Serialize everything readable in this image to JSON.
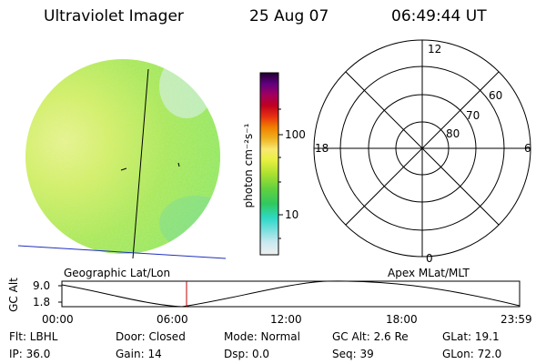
{
  "header": {
    "title": "Ultraviolet Imager",
    "date": "25 Aug 07",
    "time": "06:49:44 UT"
  },
  "colorbar": {
    "unit": "photon cm⁻²s⁻¹",
    "tick_100": "100",
    "tick_10": "10",
    "colors": [
      "#f0f0f0",
      "#c8e8f0",
      "#80e0e0",
      "#30d8c8",
      "#30c860",
      "#60d040",
      "#a8e030",
      "#e8f040",
      "#f0e860",
      "#f8d080",
      "#f0a000",
      "#e83010",
      "#c00020",
      "#a00060",
      "#600080",
      "#200030"
    ]
  },
  "polar_plot": {
    "label_top": "12",
    "label_right": "6",
    "label_bottom": "0",
    "label_left": "18",
    "ring_60": "60",
    "ring_70": "70",
    "ring_80": "80"
  },
  "imager": {
    "fill_primary": "#8ee85a",
    "fill_secondary": "#d9f060"
  },
  "timeline": {
    "left_title": "Geographic Lat/Lon",
    "right_title": "Apex MLat/MLT",
    "axis_label": "GC Alt",
    "y_max": "9.0",
    "y_min": "1.8",
    "x_ticks": [
      "00:00",
      "06:00",
      "12:00",
      "18:00",
      "23:59"
    ],
    "marker_color": "#c00000"
  },
  "info": {
    "filter": "Flt: LBHL",
    "ip": "IP: 36.0",
    "door": "Door: Closed",
    "gain": "Gain: 14",
    "mode": "Mode: Normal",
    "dsp": "Dsp:      0.0",
    "gc_alt": "GC Alt: 2.6 Re",
    "seq": "Seq: 39",
    "glat": "GLat:  19.1",
    "glon": "GLon:  72.0"
  }
}
